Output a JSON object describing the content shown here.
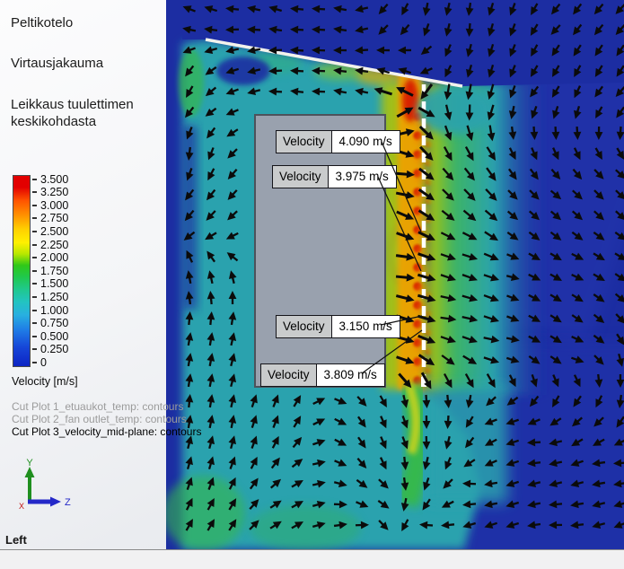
{
  "window": {
    "view_label": "Left"
  },
  "panel": {
    "titles": [
      "Peltikotelo",
      "Virtausjakauma",
      "Leikkaus tuulettimen keskikohdasta"
    ]
  },
  "legend": {
    "ticks": [
      "3.500",
      "3.250",
      "3.000",
      "2.750",
      "2.500",
      "2.250",
      "2.000",
      "1.750",
      "1.500",
      "1.250",
      "1.000",
      "0.750",
      "0.500",
      "0.250",
      "0"
    ],
    "unit_label": "Velocity [m/s]"
  },
  "cut_plots": [
    {
      "label": "Cut Plot 1_etuaukot_temp: contours",
      "active": false
    },
    {
      "label": "Cut Plot 2_fan outlet_temp: contours",
      "active": false
    },
    {
      "label": "Cut Plot 3_velocity_mid-plane: contours",
      "active": true
    }
  ],
  "callouts": [
    {
      "label": "Velocity",
      "value": "4.090 m/s"
    },
    {
      "label": "Velocity",
      "value": "3.975 m/s"
    },
    {
      "label": "Velocity",
      "value": "3.150 m/s"
    },
    {
      "label": "Velocity",
      "value": "3.809 m/s"
    }
  ],
  "triad": {
    "x_label": "X",
    "y_label": "Y",
    "z_label": "Z"
  },
  "colors": {
    "deep_blue": "#1c2da2",
    "teal": "#2aa2ae",
    "hot_red": "#d41400",
    "panel_gray": "#99a1ae",
    "legend_top_red": "#e20000"
  },
  "chart_data": {
    "type": "heatmap",
    "title": "Cut Plot 3_velocity_mid-plane: contours",
    "subtitle": "Peltikotelo — Virtausjakauma — Leikkaus tuulettimen keskikohdasta",
    "legend": {
      "label": "Velocity [m/s]",
      "min": 0,
      "max": 3.5,
      "tick_step": 0.25,
      "ticks": [
        3.5,
        3.25,
        3.0,
        2.75,
        2.5,
        2.25,
        2.0,
        1.75,
        1.5,
        1.25,
        1.0,
        0.75,
        0.5,
        0.25,
        0
      ],
      "position": "left",
      "colormap": [
        "#0d24c4",
        "#1646d8",
        "#28b0e0",
        "#22c4c0",
        "#20c890",
        "#30c818",
        "#b8e800",
        "#fff000",
        "#ff9400",
        "#e20000"
      ]
    },
    "probes": [
      {
        "name": "Velocity",
        "value": 4.09,
        "unit": "m/s"
      },
      {
        "name": "Velocity",
        "value": 3.975,
        "unit": "m/s"
      },
      {
        "name": "Velocity",
        "value": 3.15,
        "unit": "m/s"
      },
      {
        "name": "Velocity",
        "value": 3.809,
        "unit": "m/s"
      }
    ],
    "annotations": [
      "Cut Plot 1_etuaukot_temp: contours",
      "Cut Plot 2_fan outlet_temp: contours",
      "Cut Plot 3_velocity_mid-plane: contours"
    ],
    "view_orientation": "Left"
  }
}
